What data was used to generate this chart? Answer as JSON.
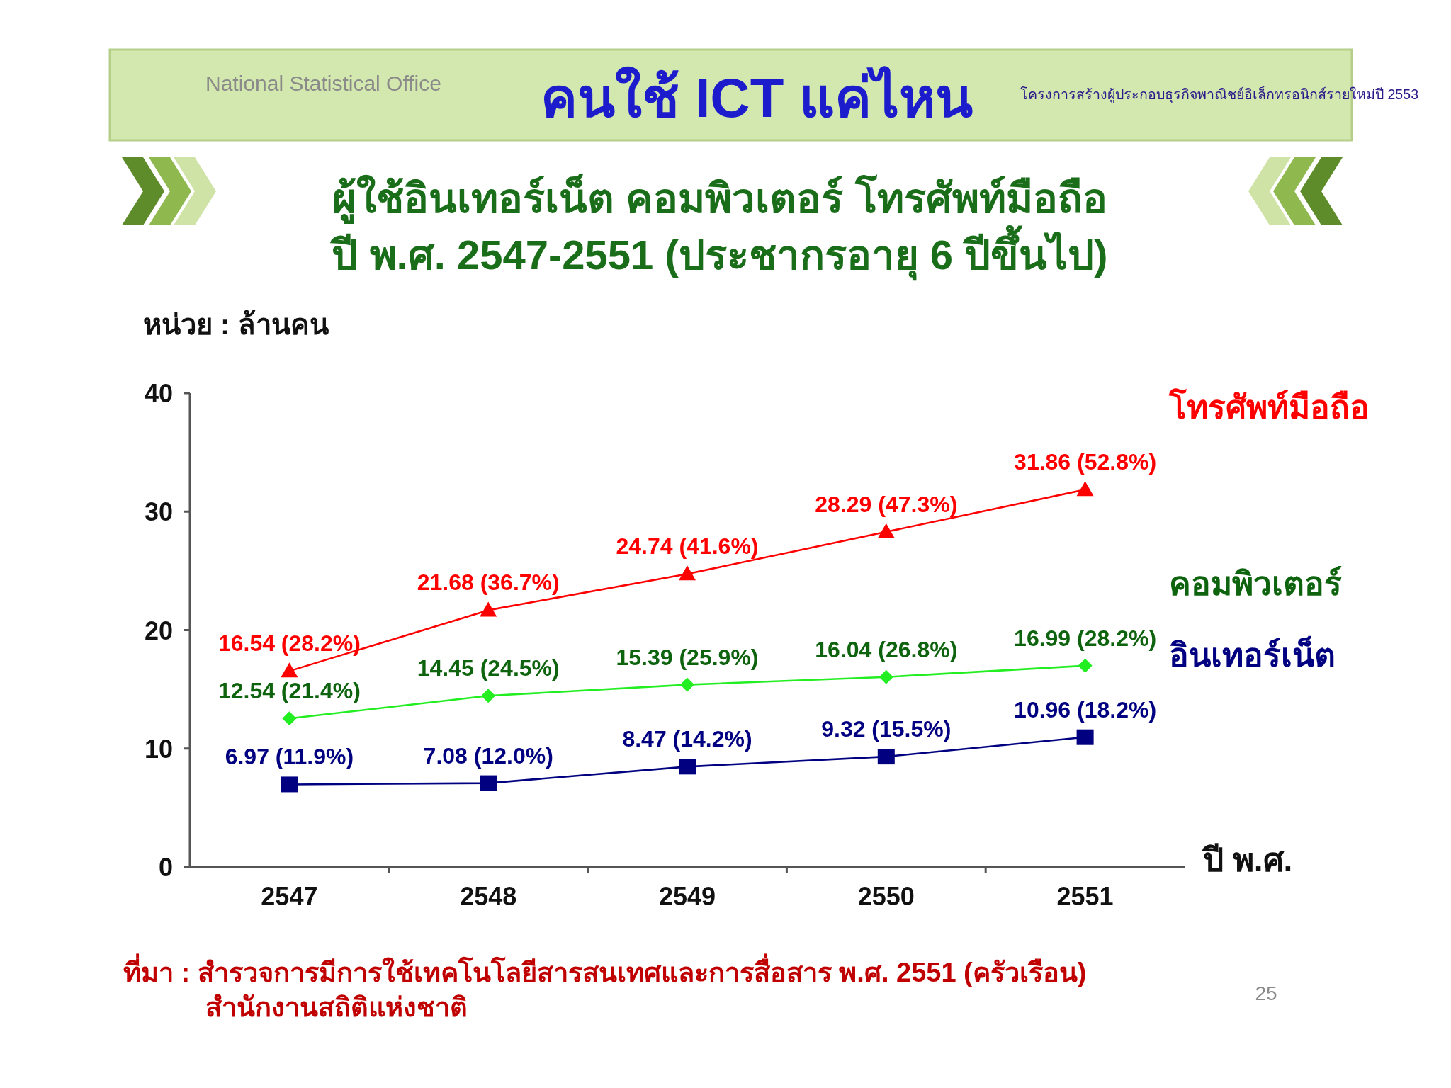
{
  "chart_data": {
    "type": "line",
    "title": "คนใช้ ICT แค่ไหน",
    "subtitle": "ผู้ใช้อินเทอร์เน็ต คอมพิวเตอร์ โทรศัพท์มือถือ\nปี พ.ศ. 2547-2551 (ประชากรอายุ 6 ปีขึ้นไป)",
    "ylabel": "หน่วย : ล้านคน",
    "xlabel": "ปี พ.ศ.",
    "annotations": [
      "National Statistical Office",
      "โครงการสร้างผู้ประกอบธุรกิจพาณิชย์อิเล็กทรอนิกส์รายใหม่ปี 2553",
      "ที่มา : สำรวจการมีการใช้เทคโนโลยีสารสนเทศและการสื่อสาร พ.ศ. 2551 (ครัวเรือน)\nสำนักงานสถิติแห่งชาติ",
      "25"
    ],
    "categories": [
      "2547",
      "2548",
      "2549",
      "2550",
      "2551"
    ],
    "ylim": [
      0,
      40
    ],
    "yticks": [
      0,
      10,
      20,
      30,
      40
    ],
    "series": [
      {
        "name": "โทรศัพท์มือถือ",
        "color": "#ff0000",
        "marker": "triangle",
        "values": [
          16.54,
          21.68,
          24.74,
          28.29,
          31.86
        ],
        "value_labels": [
          "16.54 (28.2%)",
          "21.68 (36.7%)",
          "24.74 (41.6%)",
          "28.29 (47.3%)",
          "31.86 (52.8%)"
        ]
      },
      {
        "name": "คอมพิวเตอร์",
        "color": "#22ee22",
        "marker": "diamond",
        "values": [
          12.54,
          14.45,
          15.39,
          16.04,
          16.99
        ],
        "value_labels": [
          "12.54 (21.4%)",
          "14.45 (24.5%)",
          "15.39 (25.9%)",
          "16.04 (26.8%)",
          "16.99 (28.2%)"
        ]
      },
      {
        "name": "อินเทอร์เน็ต",
        "color": "#000080",
        "marker": "square",
        "values": [
          6.97,
          7.08,
          8.47,
          9.32,
          10.96
        ],
        "value_labels": [
          "6.97 (11.9%)",
          "7.08 (12.0%)",
          "8.47 (14.2%)",
          "9.32 (15.5%)",
          "10.96 (18.2%)"
        ]
      }
    ]
  }
}
